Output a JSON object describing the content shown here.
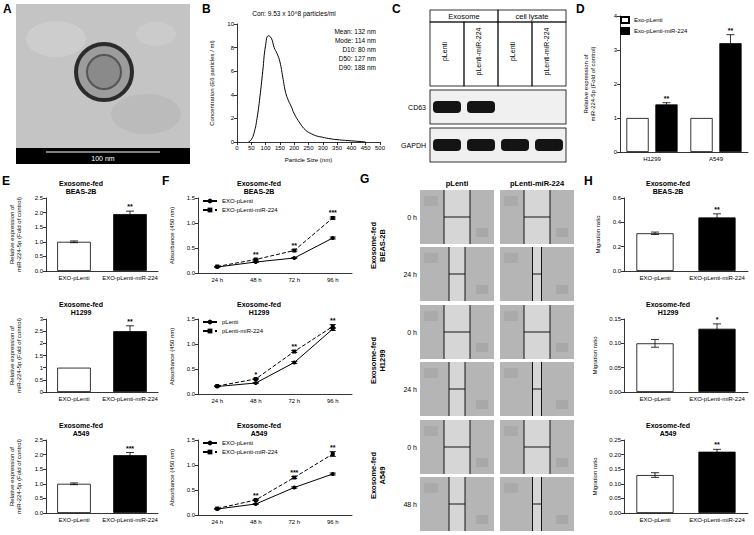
{
  "figure": {
    "A": {
      "panel": "A",
      "scale_bar": "100 nm"
    },
    "C": {
      "panel": "C",
      "groups": [
        "Exosome",
        "cell lysate"
      ],
      "lanes": [
        "pLenti",
        "pLenti-miR-224",
        "pLenti",
        "pLenti-miR-224"
      ],
      "rows": [
        {
          "label": "CD63",
          "bands": [
            true,
            true,
            false,
            false
          ]
        },
        {
          "label": "GAPDH",
          "bands": [
            true,
            true,
            true,
            true
          ]
        }
      ]
    },
    "G": {
      "panel": "G",
      "columns": [
        "pLenti",
        "pLenti-miR-224"
      ],
      "rows": [
        {
          "label": "Exosome-fed\nBEAS-2B",
          "times": [
            "0 h",
            "24 h"
          ]
        },
        {
          "label": "Exosome-fed\nH1299",
          "times": [
            "0 h",
            "24 h"
          ]
        },
        {
          "label": "Exosome-fed\nA549",
          "times": [
            "0 h",
            "48 h"
          ]
        }
      ]
    }
  },
  "chart_data": [
    {
      "panel": "B",
      "type": "line",
      "title": "Con: 9.53 x 10^8 particles/ml",
      "annotations": [
        "Mean: 132 nm",
        "Mode: 114 nm",
        "D10: 80 nm",
        "D50: 127 nm",
        "D90: 188 nm"
      ],
      "x": [
        40,
        50,
        60,
        70,
        80,
        90,
        100,
        110,
        120,
        130,
        140,
        150,
        160,
        170,
        180,
        190,
        200,
        220,
        240,
        260,
        280,
        300,
        320,
        350,
        400,
        450
      ],
      "values": [
        0,
        0.2,
        0.8,
        2,
        3.8,
        6,
        8.2,
        9,
        8.8,
        8,
        7.5,
        6.8,
        5.5,
        4.2,
        3.5,
        3,
        2.4,
        1.6,
        1,
        0.7,
        0.5,
        0.4,
        0.3,
        0.2,
        0.1,
        0
      ],
      "color": "#000000",
      "xlabel": "Particle Size (nm)",
      "ylabel": "Concentration (E6 particles / ml)",
      "xlim": [
        0,
        500
      ],
      "xticks": [
        0,
        50,
        100,
        150,
        200,
        250,
        300,
        350,
        400,
        450,
        500
      ],
      "ylim": [
        0,
        10
      ],
      "yticks": [
        0,
        2,
        4,
        6,
        8,
        10
      ]
    },
    {
      "panel": "D",
      "type": "bar",
      "categories": [
        "H1299",
        "A549"
      ],
      "series": [
        {
          "name": "Exo-pLenti",
          "color": "#ffffff",
          "values": [
            1,
            1
          ],
          "errors": [
            0,
            0
          ]
        },
        {
          "name": "Exo-pLenti-miR-224",
          "color": "#000000",
          "values": [
            1.4,
            3.2
          ],
          "errors": [
            0.05,
            0.25
          ]
        }
      ],
      "annotations": [
        "**",
        "**"
      ],
      "ylabel": "Relative expression of\nmiR-224-5p (Fold of control)",
      "ylim": [
        0,
        4
      ],
      "yticks": [
        0,
        1,
        2,
        3,
        4
      ],
      "legend": "top-left"
    },
    {
      "panel": "E",
      "type": "bar",
      "title": "Exosome-fed\nBEAS-2B",
      "categories": [
        "EXO-pLenti",
        "EXO-pLenti-miR-224"
      ],
      "values": [
        1,
        1.95
      ],
      "errors": [
        0.03,
        0.1
      ],
      "colors": [
        "#ffffff",
        "#000000"
      ],
      "annotations": [
        null,
        "**"
      ],
      "ylabel": "Relative expression of\nmiR-224-5p (Fold of control)",
      "ylim": [
        0,
        2.5
      ],
      "yticks": [
        {
          "value": 0,
          "label": "0.0"
        },
        0.5,
        {
          "value": 1,
          "label": "1.0"
        },
        1.5,
        {
          "value": 2,
          "label": "2.0"
        },
        2.5
      ]
    },
    {
      "type": "bar",
      "title": "Exosome-fed\nH1299",
      "categories": [
        "EXO-pLenti",
        "EXO-pLenti-miR-224"
      ],
      "values": [
        1,
        2.5
      ],
      "errors": [
        0,
        0.22
      ],
      "colors": [
        "#ffffff",
        "#000000"
      ],
      "annotations": [
        null,
        "**"
      ],
      "ylabel": "Relative expression of\nmiR-224-5p (Fold of control)",
      "ylim": [
        0,
        3
      ],
      "yticks": [
        0,
        0.5,
        1,
        1.5,
        2,
        2.5,
        3
      ]
    },
    {
      "type": "bar",
      "title": "Exosome-fed\nA549",
      "categories": [
        "EXO-pLenti",
        "EXO-pLenti-miR-224"
      ],
      "values": [
        1,
        1.98
      ],
      "errors": [
        0.03,
        0.09
      ],
      "colors": [
        "#ffffff",
        "#000000"
      ],
      "annotations": [
        null,
        "***"
      ],
      "ylabel": "Relative expression of\nmiR-224-5p (Fold of control)",
      "ylim": [
        0,
        2.5
      ],
      "yticks": [
        {
          "value": 0,
          "label": "0.0"
        },
        0.5,
        {
          "value": 1,
          "label": "1.0"
        },
        1.5,
        {
          "value": 2,
          "label": "2.0"
        },
        2.5
      ]
    },
    {
      "panel": "F",
      "type": "line",
      "title": "Exosome-fed\nBEAS-2B",
      "categories": [
        "24 h",
        "48 h",
        "72 h",
        "96 h"
      ],
      "series": [
        {
          "name": "EXO-pLenti",
          "color": "#000000",
          "values": [
            0.12,
            0.22,
            0.3,
            0.7
          ],
          "errors": [
            0.005,
            0.01,
            0.01,
            0.02
          ],
          "marker": "circle",
          "line_style": "solid"
        },
        {
          "name": "EXO-pLenti-miR-224",
          "color": "#000000",
          "values": [
            0.13,
            0.27,
            0.45,
            1.1
          ],
          "errors": [
            0.005,
            0.01,
            0.015,
            0.02
          ],
          "marker": "square",
          "line_style": "dashed"
        }
      ],
      "annotations": [
        null,
        "**",
        "**",
        "***"
      ],
      "ylabel": "Absorbance (450 nm)",
      "ylim": [
        0,
        1.5
      ],
      "yticks": [
        {
          "value": 0,
          "label": "0.0"
        },
        0.5,
        {
          "value": 1,
          "label": "1.0"
        },
        1.5
      ],
      "legend": "top-left"
    },
    {
      "type": "line",
      "title": "Exosome-fed\nH1299",
      "categories": [
        "24 h",
        "48 h",
        "72 h",
        "96 h"
      ],
      "series": [
        {
          "name": "pLenti",
          "color": "#000000",
          "values": [
            0.15,
            0.22,
            0.63,
            1.3
          ],
          "errors": [
            0.005,
            0.01,
            0.02,
            0.03
          ],
          "marker": "circle",
          "line_style": "solid"
        },
        {
          "name": "pLenti-miR-224",
          "color": "#000000",
          "values": [
            0.16,
            0.3,
            0.85,
            1.35
          ],
          "errors": [
            0.005,
            0.01,
            0.02,
            0.04
          ],
          "marker": "square",
          "line_style": "dashed"
        }
      ],
      "annotations": [
        null,
        "*",
        "**",
        "**"
      ],
      "ylabel": "Absorbance (450 nm)",
      "ylim": [
        0,
        1.5
      ],
      "yticks": [
        {
          "value": 0,
          "label": "0.0"
        },
        0.5,
        {
          "value": 1,
          "label": "1.0"
        },
        1.5
      ],
      "legend": "top-left"
    },
    {
      "type": "line",
      "title": "Exosome-fed\nA549",
      "categories": [
        "24 h",
        "48 h",
        "72 h",
        "96 h"
      ],
      "series": [
        {
          "name": "EXO-pLenti",
          "color": "#000000",
          "values": [
            0.12,
            0.22,
            0.55,
            0.82
          ],
          "errors": [
            0.005,
            0.01,
            0.015,
            0.02
          ],
          "marker": "circle",
          "line_style": "solid"
        },
        {
          "name": "EXO-pLenti-miR-224",
          "color": "#000000",
          "values": [
            0.13,
            0.3,
            0.75,
            1.22
          ],
          "errors": [
            0.005,
            0.01,
            0.02,
            0.05
          ],
          "marker": "square",
          "line_style": "dashed"
        }
      ],
      "annotations": [
        null,
        "**",
        "***",
        "**"
      ],
      "ylabel": "Absorbance (450 nm)",
      "ylim": [
        0,
        1.5
      ],
      "yticks": [
        {
          "value": 0,
          "label": "0.0"
        },
        0.5,
        {
          "value": 1,
          "label": "1.0"
        },
        1.5
      ],
      "legend": "top-left"
    },
    {
      "panel": "H",
      "type": "bar",
      "title": "Exosome-fed\nBEAS-2B",
      "categories": [
        "EXO-pLenti",
        "EXO-pLenti-miR-224"
      ],
      "values": [
        0.31,
        0.44
      ],
      "errors": [
        0.01,
        0.03
      ],
      "colors": [
        "#ffffff",
        "#000000"
      ],
      "annotations": [
        null,
        "**"
      ],
      "ylabel": "Migration ratio",
      "ylim": [
        0,
        0.6
      ],
      "yticks": [
        {
          "value": 0,
          "label": "0.0"
        },
        0.2,
        0.4,
        0.6
      ]
    },
    {
      "type": "bar",
      "title": "Exosome-fed\nH1299",
      "categories": [
        "EXO-pLenti",
        "EXO-pLenti-miR-224"
      ],
      "values": [
        0.1,
        0.13
      ],
      "errors": [
        0.008,
        0.01
      ],
      "colors": [
        "#ffffff",
        "#000000"
      ],
      "annotations": [
        null,
        "*"
      ],
      "ylabel": "Migration ratio",
      "ylim": [
        0,
        0.15
      ],
      "yticks": [
        {
          "value": 0,
          "label": "0.00"
        },
        0.05,
        {
          "value": 0.1,
          "label": "0.10"
        },
        0.15
      ]
    },
    {
      "type": "bar",
      "title": "Exosome-fed\nA549",
      "categories": [
        "EXO-pLenti",
        "EXO-pLenti-miR-224"
      ],
      "values": [
        0.13,
        0.21
      ],
      "errors": [
        0.008,
        0.008
      ],
      "colors": [
        "#ffffff",
        "#000000"
      ],
      "annotations": [
        null,
        "**"
      ],
      "ylabel": "Migration ratio",
      "ylim": [
        0,
        0.25
      ],
      "yticks": [
        {
          "value": 0,
          "label": "0.00"
        },
        0.05,
        {
          "value": 0.1,
          "label": "0.10"
        },
        0.15,
        {
          "value": 0.2,
          "label": "0.20"
        },
        0.25
      ]
    }
  ]
}
